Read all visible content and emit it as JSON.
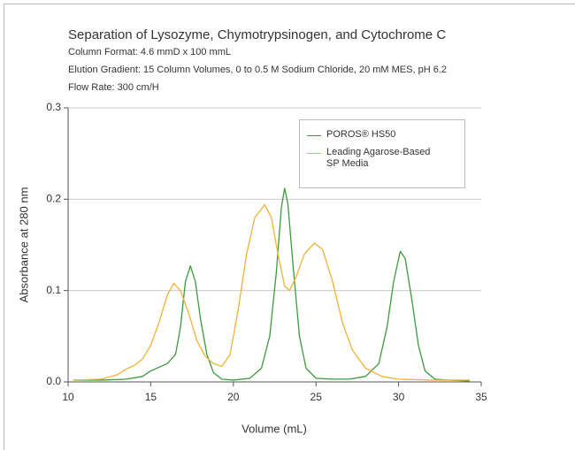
{
  "chart_data": {
    "type": "line",
    "title": "Separation of Lysozyme, Chymotrypsinogen, and Cytochrome C",
    "subtitles": [
      "Column Format: 4.6 mmD x 100 mmL",
      "Elution Gradient: 15 Column Volumes, 0 to 0.5 M Sodium Chloride, 20 mM MES, pH 6.2",
      "Flow Rate: 300 cm/H"
    ],
    "x_label": "Volume (mL)",
    "y_label": "Absorbance at 280 nm",
    "xlim": [
      10,
      35
    ],
    "xticks": [
      10,
      15,
      20,
      25,
      30,
      35
    ],
    "ylim": [
      0,
      0.3
    ],
    "yticks": [
      {
        "value": 0,
        "label": "0.0"
      },
      0.1,
      0.2,
      0.3
    ],
    "grid": true,
    "legend": "upper right",
    "series": [
      {
        "name": "POROS® HS50",
        "color": "#3c9a3c",
        "x": [
          10.3,
          12,
          13.5,
          14.5,
          15,
          15.5,
          16,
          16.5,
          16.8,
          17.1,
          17.4,
          17.7,
          18,
          18.4,
          18.8,
          19.3,
          20,
          21,
          21.7,
          22.2,
          22.6,
          22.9,
          23.1,
          23.3,
          23.6,
          24,
          24.4,
          25,
          26,
          27,
          28,
          28.8,
          29.3,
          29.7,
          30.1,
          30.4,
          30.8,
          31.2,
          31.6,
          32.2,
          33,
          34.3
        ],
        "values": [
          0.002,
          0.002,
          0.003,
          0.006,
          0.012,
          0.016,
          0.02,
          0.03,
          0.06,
          0.11,
          0.127,
          0.11,
          0.07,
          0.03,
          0.01,
          0.003,
          0.002,
          0.004,
          0.015,
          0.05,
          0.12,
          0.19,
          0.212,
          0.195,
          0.13,
          0.05,
          0.015,
          0.004,
          0.003,
          0.003,
          0.006,
          0.02,
          0.06,
          0.11,
          0.143,
          0.135,
          0.09,
          0.04,
          0.012,
          0.003,
          0.002,
          0.001
        ]
      },
      {
        "name": "Leading Agarose-Based SP Media",
        "color": "#f2b134",
        "x": [
          10.3,
          12,
          13,
          13.5,
          14,
          14.5,
          15,
          15.5,
          16,
          16.4,
          16.8,
          17.3,
          17.8,
          18.3,
          18.8,
          19.3,
          19.8,
          20.3,
          20.8,
          21.3,
          21.9,
          22.3,
          22.7,
          23.1,
          23.4,
          23.8,
          24.3,
          24.9,
          25.4,
          26,
          26.6,
          27.2,
          28,
          29,
          30,
          32,
          34.3
        ],
        "values": [
          0.002,
          0.003,
          0.008,
          0.014,
          0.018,
          0.025,
          0.04,
          0.065,
          0.095,
          0.108,
          0.1,
          0.075,
          0.045,
          0.028,
          0.02,
          0.017,
          0.03,
          0.08,
          0.14,
          0.18,
          0.194,
          0.18,
          0.14,
          0.105,
          0.1,
          0.115,
          0.14,
          0.152,
          0.145,
          0.11,
          0.065,
          0.035,
          0.015,
          0.006,
          0.003,
          0.002,
          0.002
        ]
      }
    ]
  }
}
